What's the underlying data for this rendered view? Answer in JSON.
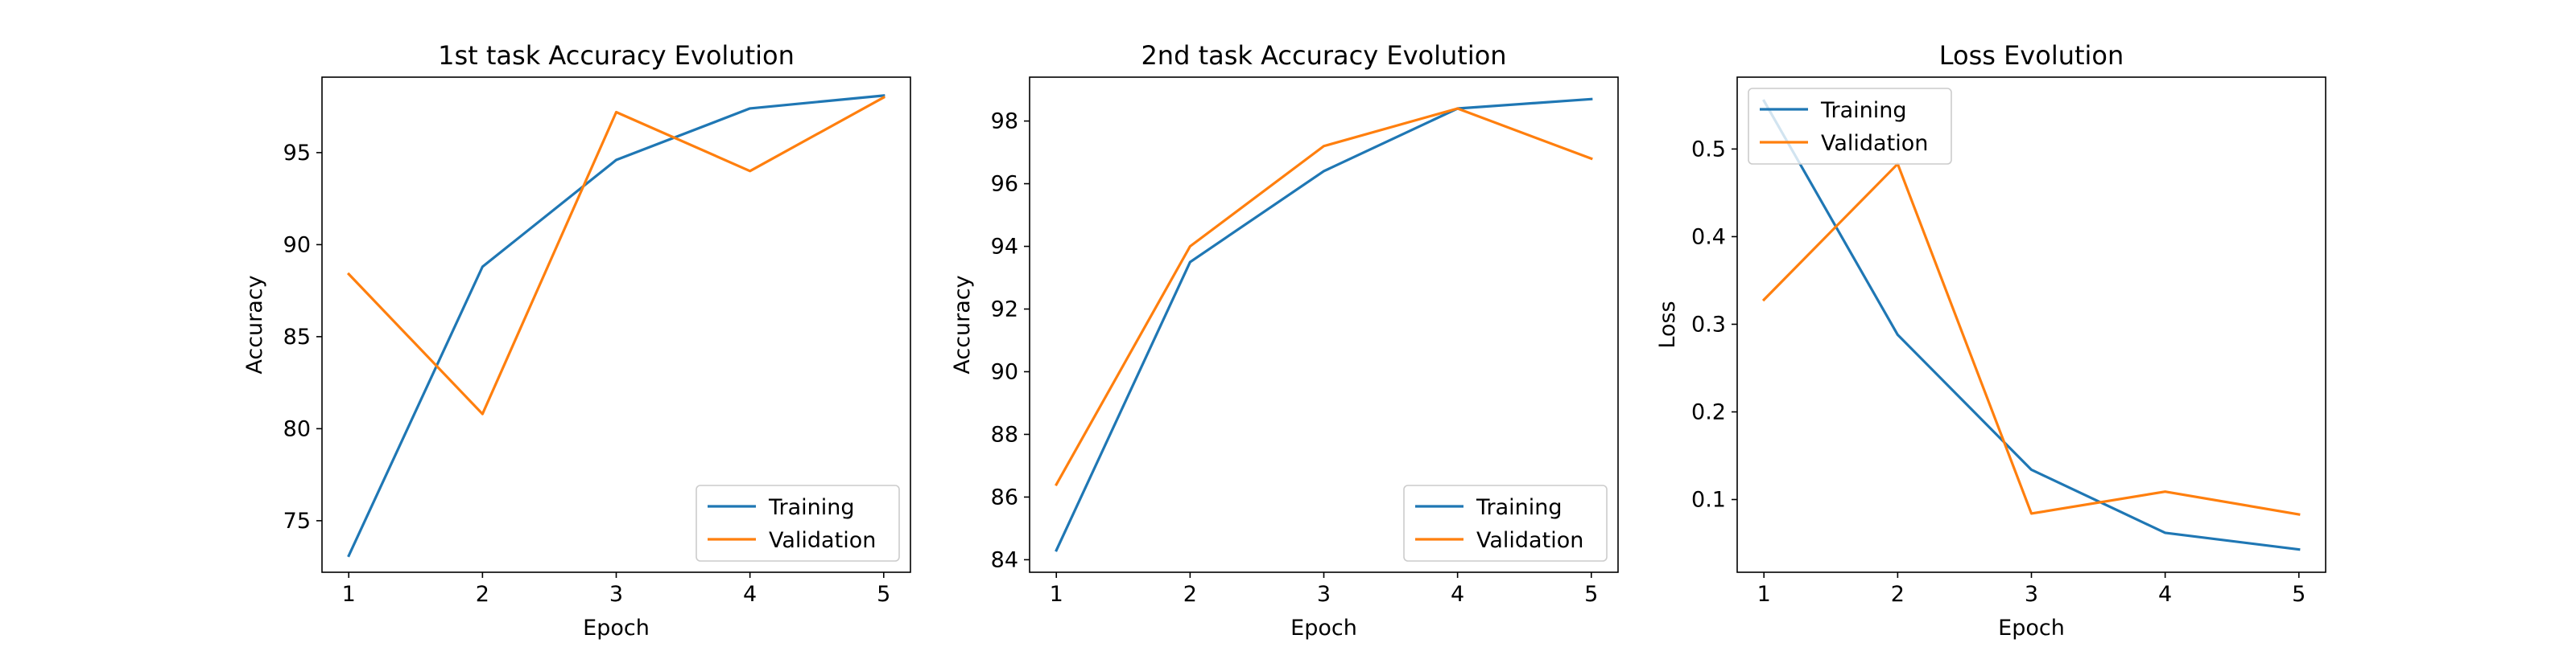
{
  "chart_data": [
    {
      "type": "line",
      "title": "1st task Accuracy Evolution",
      "xlabel": "Epoch",
      "ylabel": "Accuracy",
      "x": [
        1,
        2,
        3,
        4,
        5
      ],
      "xlim": [
        0.8,
        5.2
      ],
      "ylim": [
        72.2,
        99.1
      ],
      "xticks": [
        1,
        2,
        3,
        4,
        5
      ],
      "yticks": [
        75,
        80,
        85,
        90,
        95
      ],
      "series": [
        {
          "name": "Training",
          "color": "#1f77b4",
          "values": [
            73.1,
            88.8,
            94.6,
            97.4,
            98.1
          ]
        },
        {
          "name": "Validation",
          "color": "#ff7f0e",
          "values": [
            88.4,
            80.8,
            97.2,
            94.0,
            98.0
          ]
        }
      ],
      "legend": "lower-right",
      "grid": false
    },
    {
      "type": "line",
      "title": "2nd task Accuracy Evolution",
      "xlabel": "Epoch",
      "ylabel": "Accuracy",
      "x": [
        1,
        2,
        3,
        4,
        5
      ],
      "xlim": [
        0.8,
        5.2
      ],
      "ylim": [
        83.6,
        99.4
      ],
      "xticks": [
        1,
        2,
        3,
        4,
        5
      ],
      "yticks": [
        84,
        86,
        88,
        90,
        92,
        94,
        96,
        98
      ],
      "series": [
        {
          "name": "Training",
          "color": "#1f77b4",
          "values": [
            84.3,
            93.5,
            96.4,
            98.4,
            98.7
          ]
        },
        {
          "name": "Validation",
          "color": "#ff7f0e",
          "values": [
            86.4,
            94.0,
            97.2,
            98.4,
            96.8
          ]
        }
      ],
      "legend": "lower-right",
      "grid": false
    },
    {
      "type": "line",
      "title": "Loss Evolution",
      "xlabel": "Epoch",
      "ylabel": "Loss",
      "x": [
        1,
        2,
        3,
        4,
        5
      ],
      "xlim": [
        0.8,
        5.2
      ],
      "ylim": [
        0.017,
        0.582
      ],
      "xticks": [
        1,
        2,
        3,
        4,
        5
      ],
      "yticks": [
        0.1,
        0.2,
        0.3,
        0.4,
        0.5
      ],
      "series": [
        {
          "name": "Training",
          "color": "#1f77b4",
          "values": [
            0.555,
            0.288,
            0.134,
            0.062,
            0.043
          ]
        },
        {
          "name": "Validation",
          "color": "#ff7f0e",
          "values": [
            0.328,
            0.483,
            0.084,
            0.109,
            0.083
          ]
        }
      ],
      "legend": "upper-left",
      "grid": false
    }
  ]
}
